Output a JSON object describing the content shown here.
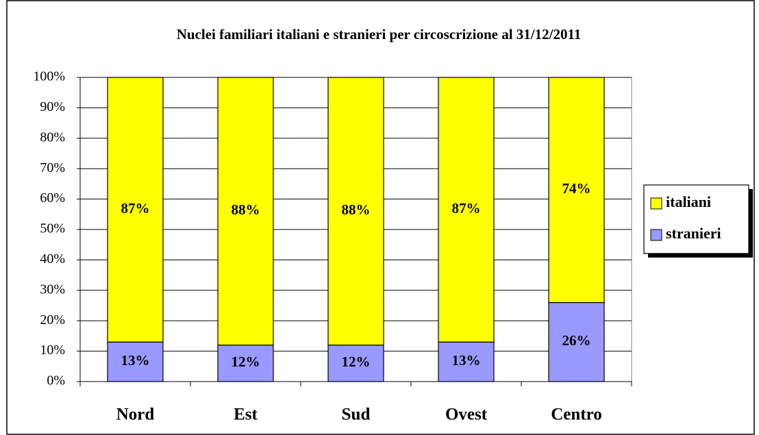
{
  "chart_data": {
    "type": "stacked-bar",
    "title": "Nuclei familiari italiani e stranieri per circoscrizione al 31/12/2011",
    "categories": [
      "Nord",
      "Est",
      "Sud",
      "Ovest",
      "Centro"
    ],
    "series": [
      {
        "name": "stranieri",
        "color": "#9999ff",
        "values": [
          13,
          12,
          12,
          13,
          26
        ],
        "value_labels": [
          "13%",
          "12%",
          "12%",
          "13%",
          "26%"
        ]
      },
      {
        "name": "italiani",
        "color": "#ffff00",
        "values": [
          87,
          88,
          88,
          87,
          74
        ],
        "value_labels": [
          "87%",
          "88%",
          "88%",
          "87%",
          "74%"
        ]
      }
    ],
    "ylim": [
      0,
      100
    ],
    "yticks": [
      {
        "value": 0,
        "label": "0%"
      },
      {
        "value": 10,
        "label": "10%"
      },
      {
        "value": 20,
        "label": "20%"
      },
      {
        "value": 30,
        "label": "30%"
      },
      {
        "value": 40,
        "label": "40%"
      },
      {
        "value": 50,
        "label": "50%"
      },
      {
        "value": 60,
        "label": "60%"
      },
      {
        "value": 70,
        "label": "70%"
      },
      {
        "value": 80,
        "label": "80%"
      },
      {
        "value": 90,
        "label": "90%"
      },
      {
        "value": 100,
        "label": "100%"
      }
    ],
    "grid": true,
    "legend": "right"
  }
}
